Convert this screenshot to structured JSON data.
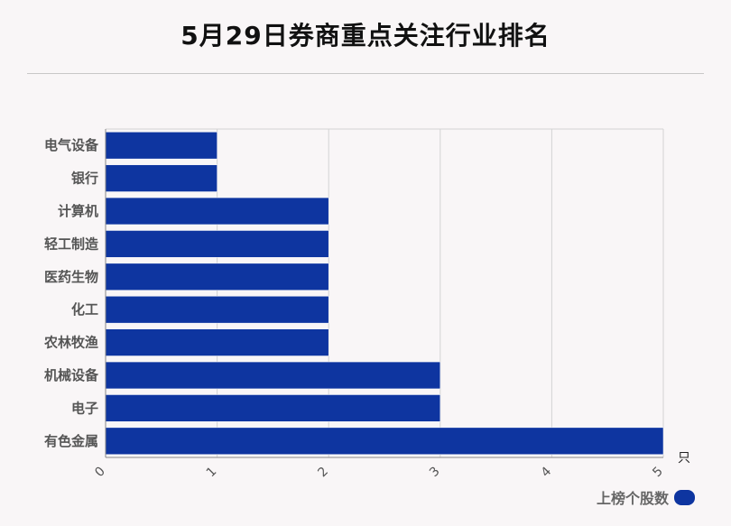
{
  "title": "5月29日券商重点关注行业排名",
  "chart_data": {
    "type": "bar",
    "orientation": "horizontal",
    "title": "5月29日券商重点关注行业排名",
    "categories": [
      "电气设备",
      "银行",
      "计算机",
      "轻工制造",
      "医药生物",
      "化工",
      "农林牧渔",
      "机械设备",
      "电子",
      "有色金属"
    ],
    "series": [
      {
        "name": "上榜个股数",
        "values": [
          1,
          1,
          2,
          2,
          2,
          2,
          2,
          3,
          3,
          5
        ],
        "color": "#0e35a0"
      }
    ],
    "xlim": [
      0,
      5
    ],
    "x_ticks": [
      "0",
      "1",
      "2",
      "3",
      "4",
      "5"
    ],
    "x_unit": "只",
    "grid": true,
    "legend_position": "bottom-right"
  },
  "legend": {
    "label": "上榜个股数"
  },
  "colors": {
    "bar": "#0e35a0",
    "grid": "#d3d3d3",
    "category_text": "#555555",
    "tick_text": "#555555"
  }
}
